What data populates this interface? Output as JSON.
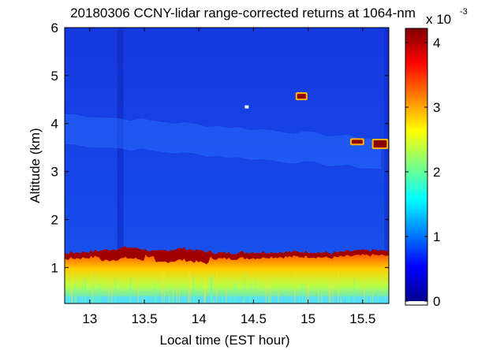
{
  "chart_data": {
    "type": "heatmap",
    "title": "20180306 CCNY-lidar range-corrected returns at 1064-nm",
    "xlabel": "Local time (EST hour)",
    "ylabel": "Altitude (km)",
    "xlim": [
      12.77,
      15.74
    ],
    "ylim": [
      0.25,
      6.0
    ],
    "x_ticks": [
      13,
      13.5,
      14,
      14.5,
      15,
      15.5
    ],
    "x_tick_labels": [
      "13",
      "13.5",
      "14",
      "14.5",
      "15",
      "15.5"
    ],
    "y_ticks": [
      1,
      2,
      3,
      4,
      5,
      6
    ],
    "y_tick_labels": [
      "1",
      "2",
      "3",
      "4",
      "5",
      "6"
    ],
    "colorbar": {
      "colormap": "jet",
      "range": [
        0,
        4
      ],
      "ticks": [
        0,
        1,
        2,
        3,
        4
      ],
      "tick_labels": [
        "0",
        "1",
        "2",
        "3",
        "4"
      ],
      "exponent_label": "x 10",
      "exponent_power": "-3"
    },
    "features": [
      {
        "name": "boundary layer aerosol",
        "time": [
          12.77,
          15.74
        ],
        "altitude_km": [
          0.25,
          1.35
        ],
        "value": 2.5
      },
      {
        "name": "boundary layer top",
        "time": [
          12.77,
          15.74
        ],
        "altitude_km": [
          1.1,
          1.4
        ],
        "value": 4.0
      },
      {
        "name": "cloud",
        "time": [
          14.9,
          14.98
        ],
        "altitude_km": [
          4.52,
          4.62
        ],
        "value": 4.0
      },
      {
        "name": "cloud",
        "time": [
          15.4,
          15.5
        ],
        "altitude_km": [
          3.58,
          3.66
        ],
        "value": 4.0
      },
      {
        "name": "cloud",
        "time": [
          15.6,
          15.72
        ],
        "altitude_km": [
          3.5,
          3.65
        ],
        "value": 4.0
      },
      {
        "name": "aerosol layer",
        "time": [
          12.77,
          15.74
        ],
        "altitude_km": [
          3.5,
          4.2
        ],
        "value": 0.8
      }
    ]
  }
}
